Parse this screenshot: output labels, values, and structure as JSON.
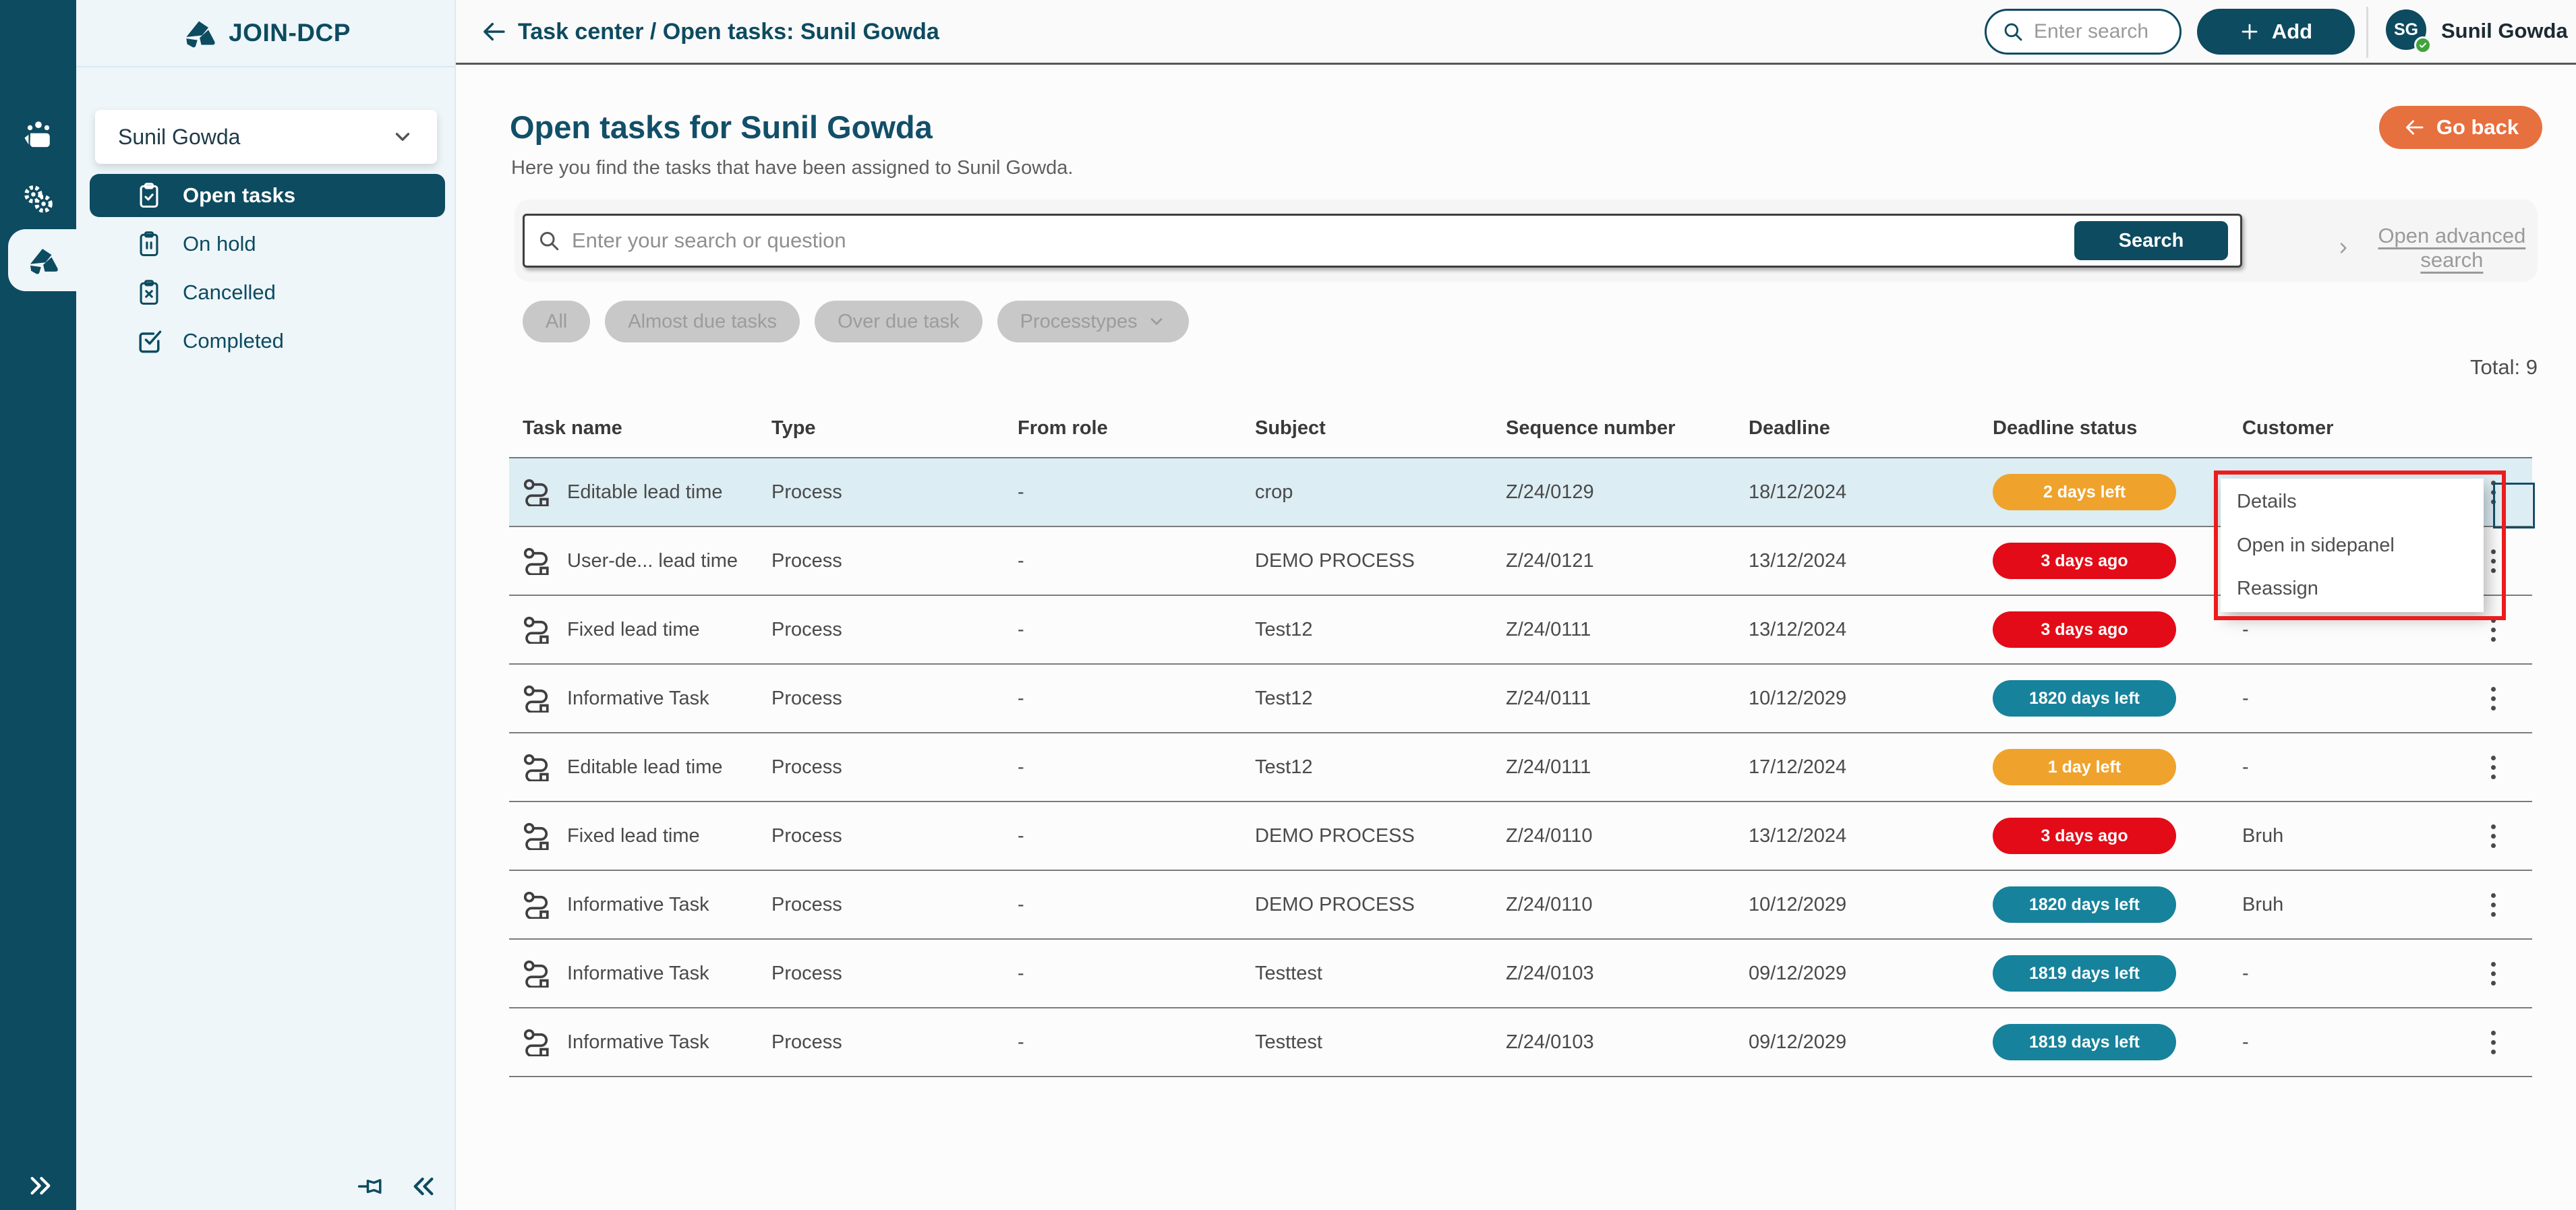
{
  "app": {
    "logo_text": "JOIN-DCP"
  },
  "topbar": {
    "breadcrumb": "Task center / Open tasks: Sunil Gowda",
    "search_placeholder": "Enter search",
    "add_label": "Add",
    "user": {
      "initials": "SG",
      "name": "Sunil Gowda"
    }
  },
  "sidebar": {
    "user_select": "Sunil Gowda",
    "items": [
      {
        "label": "Open tasks",
        "icon": "clipboard-check",
        "active": true
      },
      {
        "label": "On hold",
        "icon": "clipboard-pause",
        "active": false
      },
      {
        "label": "Cancelled",
        "icon": "clipboard-x",
        "active": false
      },
      {
        "label": "Completed",
        "icon": "check-square",
        "active": false
      }
    ]
  },
  "page": {
    "title": "Open tasks for Sunil Gowda",
    "subtitle": "Here you find the tasks that have been assigned to Sunil Gowda.",
    "go_back_label": "Go back"
  },
  "search": {
    "placeholder": "Enter your search or question",
    "button_label": "Search",
    "advanced_label": "Open advanced search"
  },
  "filters": [
    {
      "label": "All",
      "chevron": false
    },
    {
      "label": "Almost due tasks",
      "chevron": false
    },
    {
      "label": "Over due task",
      "chevron": false
    },
    {
      "label": "Processtypes",
      "chevron": true
    }
  ],
  "total_label": "Total: 9",
  "table": {
    "headers": [
      "Task name",
      "Type",
      "From role",
      "Subject",
      "Sequence number",
      "Deadline",
      "Deadline status",
      "Customer"
    ],
    "rows": [
      {
        "name": "Editable lead time",
        "type": "Process",
        "from_role": "-",
        "subject": "crop",
        "sequence": "Z/24/0129",
        "deadline": "18/12/2024",
        "status_label": "2 days left",
        "status_variant": "orange",
        "customer": "",
        "highlight": true
      },
      {
        "name": "User-de... lead time",
        "type": "Process",
        "from_role": "-",
        "subject": "DEMO PROCESS",
        "sequence": "Z/24/0121",
        "deadline": "13/12/2024",
        "status_label": "3 days ago",
        "status_variant": "red",
        "customer": "",
        "highlight": false
      },
      {
        "name": "Fixed lead time",
        "type": "Process",
        "from_role": "-",
        "subject": "Test12",
        "sequence": "Z/24/0111",
        "deadline": "13/12/2024",
        "status_label": "3 days ago",
        "status_variant": "red",
        "customer": "-",
        "highlight": false
      },
      {
        "name": "Informative Task",
        "type": "Process",
        "from_role": "-",
        "subject": "Test12",
        "sequence": "Z/24/0111",
        "deadline": "10/12/2029",
        "status_label": "1820 days left",
        "status_variant": "teal",
        "customer": "-",
        "highlight": false
      },
      {
        "name": "Editable lead time",
        "type": "Process",
        "from_role": "-",
        "subject": "Test12",
        "sequence": "Z/24/0111",
        "deadline": "17/12/2024",
        "status_label": "1 day left",
        "status_variant": "orange",
        "customer": "-",
        "highlight": false
      },
      {
        "name": "Fixed lead time",
        "type": "Process",
        "from_role": "-",
        "subject": "DEMO PROCESS",
        "sequence": "Z/24/0110",
        "deadline": "13/12/2024",
        "status_label": "3 days ago",
        "status_variant": "red",
        "customer": "Bruh",
        "highlight": false
      },
      {
        "name": "Informative Task",
        "type": "Process",
        "from_role": "-",
        "subject": "DEMO PROCESS",
        "sequence": "Z/24/0110",
        "deadline": "10/12/2029",
        "status_label": "1820 days left",
        "status_variant": "teal",
        "customer": "Bruh",
        "highlight": false
      },
      {
        "name": "Informative Task",
        "type": "Process",
        "from_role": "-",
        "subject": "Testtest",
        "sequence": "Z/24/0103",
        "deadline": "09/12/2029",
        "status_label": "1819 days left",
        "status_variant": "teal",
        "customer": "-",
        "highlight": false
      },
      {
        "name": "Informative Task",
        "type": "Process",
        "from_role": "-",
        "subject": "Testtest",
        "sequence": "Z/24/0103",
        "deadline": "09/12/2029",
        "status_label": "1819 days left",
        "status_variant": "teal",
        "customer": "-",
        "highlight": false
      }
    ]
  },
  "context_menu": {
    "items": [
      "Details",
      "Open in sidepanel",
      "Reassign"
    ]
  },
  "icons": [
    "logo-icon",
    "projects-icon",
    "gears-icon",
    "clipboard-check-icon",
    "clipboard-pause-icon",
    "clipboard-x-icon",
    "check-square-icon",
    "process-icon",
    "arrow-left-icon",
    "search-icon",
    "plus-icon",
    "chevron-down-icon",
    "chevron-right-icon",
    "pin-icon",
    "chevrons-left-icon",
    "chevrons-right-icon",
    "check-icon",
    "kebab-icon"
  ],
  "colors": {
    "accent_teal": "#0D4B60",
    "badge_orange": "#EFA32C",
    "badge_red": "#E30B17",
    "badge_teal": "#17829B",
    "go_back_orange": "#E7703F",
    "annotation_red": "#ED1C1C",
    "row_highlight": "#DCEDF3",
    "presence_green": "#41A33C"
  }
}
